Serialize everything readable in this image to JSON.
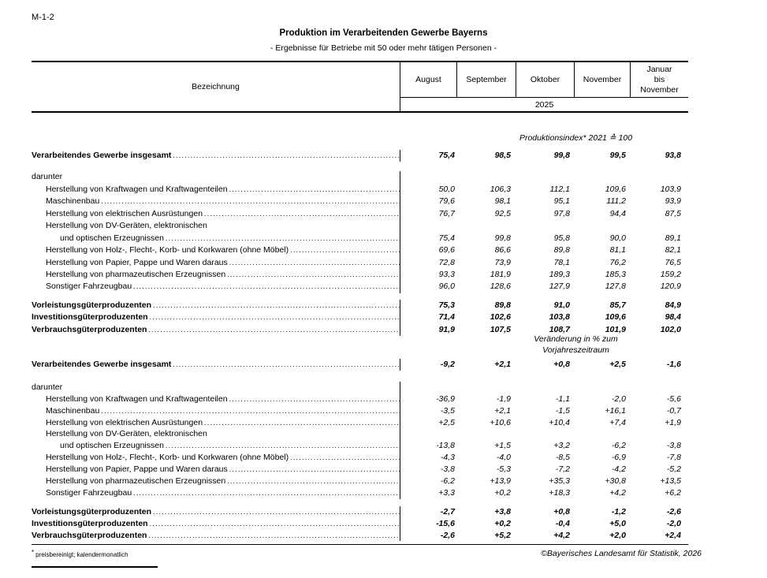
{
  "page": {
    "doc_code": "M-1-2",
    "title": "Produktion im Verarbeitenden Gewerbe Bayerns",
    "subtitle": "- Ergebnisse für Betriebe mit 50 oder mehr tätigen Personen -",
    "footnote_marker": "*",
    "footnote": "preisbereinigt; kalendermonatlich",
    "copyright": "©Bayerisches Landesamt für Statistik, 2026"
  },
  "table": {
    "label_header": "Bezeichnung",
    "columns": [
      "August",
      "September",
      "Oktober",
      "November",
      "Januar\nbis\nNovember"
    ],
    "year": "2025",
    "sections": [
      {
        "unit_label": "Produktionsindex* 2021 ≙ 100",
        "rows": [
          {
            "label": "Verarbeitendes Gewerbe insgesamt",
            "bold": true,
            "indent": 0,
            "dots": true,
            "values": [
              "75,4",
              "98,5",
              "99,8",
              "99,5",
              "93,8"
            ]
          },
          {
            "label": "darunter",
            "indent": 0,
            "dots": false,
            "values": null,
            "gap": "lg"
          },
          {
            "label": "Herstellung von Kraftwagen und Kraftwagenteilen",
            "indent": 1,
            "dots": true,
            "values": [
              "50,0",
              "106,3",
              "112,1",
              "109,6",
              "103,9"
            ]
          },
          {
            "label": "Maschinenbau",
            "indent": 1,
            "dots": true,
            "values": [
              "79,6",
              "98,1",
              "95,1",
              "111,2",
              "93,9"
            ]
          },
          {
            "label": "Herstellung von elektrischen Ausrüstungen",
            "indent": 1,
            "dots": true,
            "values": [
              "76,7",
              "92,5",
              "97,8",
              "94,4",
              "87,5"
            ]
          },
          {
            "label": "Herstellung von DV-Geräten, elektronischen",
            "indent": 1,
            "dots": false,
            "values": null
          },
          {
            "label": "und optischen Erzeugnissen",
            "indent": 2,
            "dots": true,
            "values": [
              "75,4",
              "99,8",
              "95,8",
              "90,0",
              "89,1"
            ]
          },
          {
            "label": "Herstellung von Holz-, Flecht-, Korb- und Korkwaren (ohne Möbel)",
            "indent": 1,
            "dots": true,
            "values": [
              "69,6",
              "86,6",
              "89,8",
              "81,1",
              "82,1"
            ]
          },
          {
            "label": "Herstellung von Papier, Pappe und Waren daraus",
            "indent": 1,
            "dots": true,
            "values": [
              "72,8",
              "73,9",
              "78,1",
              "76,2",
              "76,5"
            ]
          },
          {
            "label": "Herstellung von pharmazeutischen Erzeugnissen",
            "indent": 1,
            "dots": true,
            "values": [
              "93,3",
              "181,9",
              "189,3",
              "185,3",
              "159,2"
            ]
          },
          {
            "label": "Sonstiger Fahrzeugbau",
            "indent": 1,
            "dots": true,
            "values": [
              "96,0",
              "128,6",
              "127,9",
              "127,8",
              "120,9"
            ]
          },
          {
            "label": "Vorleistungsgüterproduzenten",
            "bold": true,
            "indent": 0,
            "dots": true,
            "values": [
              "75,3",
              "89,8",
              "91,0",
              "85,7",
              "84,9"
            ],
            "gap": "sm"
          },
          {
            "label": "Investitionsgüterproduzenten",
            "bold": true,
            "indent": 0,
            "dots": true,
            "values": [
              "71,4",
              "102,6",
              "103,8",
              "109,6",
              "98,4"
            ]
          },
          {
            "label": "Verbrauchsgüterproduzenten",
            "bold": true,
            "indent": 0,
            "dots": true,
            "values": [
              "91,9",
              "107,5",
              "108,7",
              "101,9",
              "102,0"
            ]
          }
        ]
      },
      {
        "unit_label": "Veränderung in % zum\nVorjahreszeitraum",
        "rows": [
          {
            "label": "Verarbeitendes Gewerbe insgesamt",
            "bold": true,
            "indent": 0,
            "dots": true,
            "values": [
              "-9,2",
              "+2,1",
              "+0,8",
              "+2,5",
              "-1,6"
            ]
          },
          {
            "label": "darunter",
            "indent": 0,
            "dots": false,
            "values": null,
            "gap": "lg"
          },
          {
            "label": "Herstellung von Kraftwagen und Kraftwagenteilen",
            "indent": 1,
            "dots": true,
            "values": [
              "-36,9",
              "-1,9",
              "-1,1",
              "-2,0",
              "-5,6"
            ]
          },
          {
            "label": "Maschinenbau",
            "indent": 1,
            "dots": true,
            "values": [
              "-3,5",
              "+2,1",
              "-1,5",
              "+16,1",
              "-0,7"
            ]
          },
          {
            "label": "Herstellung von elektrischen Ausrüstungen",
            "indent": 1,
            "dots": true,
            "values": [
              "+2,5",
              "+10,6",
              "+10,4",
              "+7,4",
              "+1,9"
            ]
          },
          {
            "label": "Herstellung von DV-Geräten, elektronischen",
            "indent": 1,
            "dots": false,
            "values": null
          },
          {
            "label": "und optischen Erzeugnissen",
            "indent": 2,
            "dots": true,
            "values": [
              "-13,8",
              "+1,5",
              "+3,2",
              "-6,2",
              "-3,8"
            ]
          },
          {
            "label": "Herstellung von Holz-, Flecht-, Korb- und Korkwaren (ohne Möbel)",
            "indent": 1,
            "dots": true,
            "values": [
              "-4,3",
              "-4,0",
              "-8,5",
              "-6,9",
              "-7,8"
            ]
          },
          {
            "label": "Herstellung von Papier, Pappe und Waren daraus",
            "indent": 1,
            "dots": true,
            "values": [
              "-3,8",
              "-5,3",
              "-7,2",
              "-4,2",
              "-5,2"
            ]
          },
          {
            "label": "Herstellung von pharmazeutischen Erzeugnissen",
            "indent": 1,
            "dots": true,
            "values": [
              "-6,2",
              "+13,9",
              "+35,3",
              "+30,8",
              "+13,5"
            ]
          },
          {
            "label": "Sonstiger Fahrzeugbau",
            "indent": 1,
            "dots": true,
            "values": [
              "+3,3",
              "+0,2",
              "+18,3",
              "+4,2",
              "+6,2"
            ]
          },
          {
            "label": "Vorleistungsgüterproduzenten",
            "bold": true,
            "indent": 0,
            "dots": true,
            "values": [
              "-2,7",
              "+3,8",
              "+0,8",
              "-1,2",
              "-2,6"
            ],
            "gap": "sm"
          },
          {
            "label": "Investitionsgüterproduzenten",
            "bold": true,
            "indent": 0,
            "dots": true,
            "values": [
              "-15,6",
              "+0,2",
              "-0,4",
              "+5,0",
              "-2,0"
            ]
          },
          {
            "label": "Verbrauchsgüterproduzenten",
            "bold": true,
            "indent": 0,
            "dots": true,
            "values": [
              "-2,6",
              "+5,2",
              "+4,2",
              "+2,0",
              "+2,4"
            ]
          }
        ]
      }
    ]
  }
}
